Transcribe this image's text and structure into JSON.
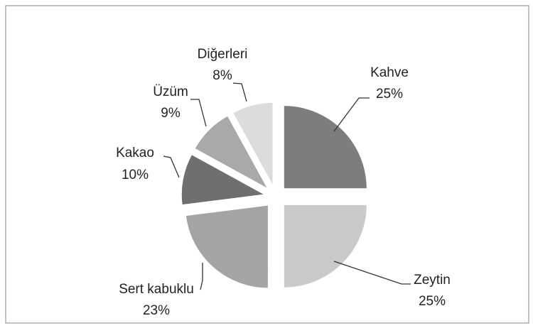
{
  "chart_data": {
    "type": "pie",
    "categories": [
      "Kahve",
      "Zeytin",
      "Sert kabuklu",
      "Kakao",
      "Üzüm",
      "Diğerleri"
    ],
    "values": [
      25,
      25,
      23,
      10,
      9,
      8
    ],
    "value_labels": [
      "25%",
      "25%",
      "23%",
      "10%",
      "9%",
      "8%"
    ],
    "colors": [
      "#7d7d7d",
      "#cacaca",
      "#a4a4a4",
      "#6f6f6f",
      "#a9a9a9",
      "#dcdcdc"
    ]
  }
}
